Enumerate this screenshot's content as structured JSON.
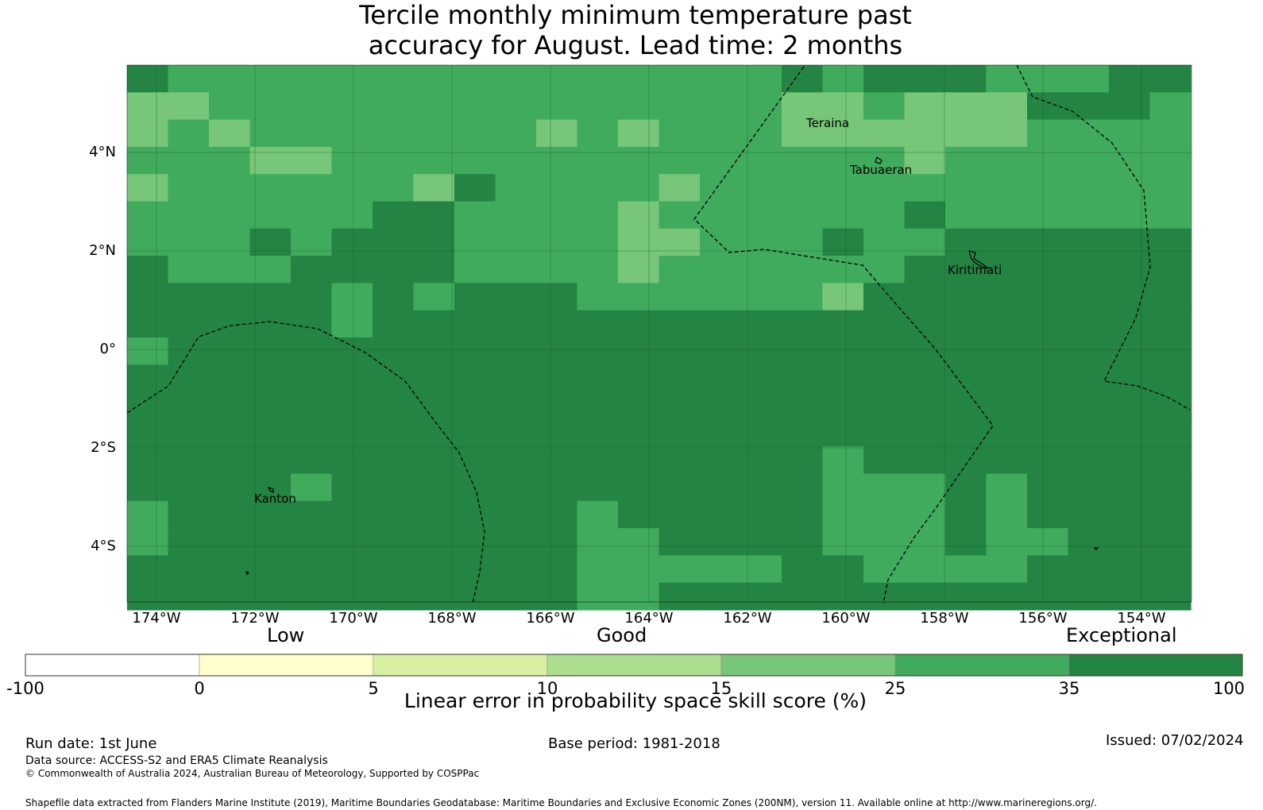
{
  "title_line1": "Tercile monthly minimum temperature past",
  "title_line2": "accuracy for August. Lead time: 2 months",
  "lat_labels": [
    "4°N",
    "2°N",
    "0°",
    "2°S",
    "4°S"
  ],
  "lon_labels": [
    "174°W",
    "172°W",
    "170°W",
    "168°W",
    "166°W",
    "164°W",
    "162°W",
    "160°W",
    "158°W",
    "156°W",
    "154°W"
  ],
  "places": {
    "teraina": "Teraina",
    "tabuaeran": "Tabuaeran",
    "kiritimati": "Kiritimati",
    "kanton": "Kanton"
  },
  "colorbar": {
    "categories": {
      "low": "Low",
      "good": "Good",
      "exceptional": "Exceptional"
    },
    "ticks": [
      "-100",
      "0",
      "5",
      "10",
      "15",
      "25",
      "35",
      "100"
    ],
    "colors": [
      "#ffffff",
      "#ffffcc",
      "#d9f0a3",
      "#addd8e",
      "#78c679",
      "#41ab5d",
      "#238443"
    ],
    "label": "Linear error in probability space skill score (%)"
  },
  "footer": {
    "run_date": "Run date: 1st June",
    "base_period": "Base period: 1981-2018",
    "issued": "Issued: 07/02/2024",
    "data_source": "Data source: ACCESS-S2 and ERA5 Climate Reanalysis",
    "copyright": "© Commonwealth of Australia 2024, Australian Bureau of Meteorology, Supported by COSPPac",
    "shapefile": "Shapefile data extracted from Flanders Marine Institute (2019), Maritime Boundaries Geodatabase: Maritime Boundaries and Exclusive Economic Zones (200NM), version 11. Available online at http://www.marineregions.org/."
  }
}
